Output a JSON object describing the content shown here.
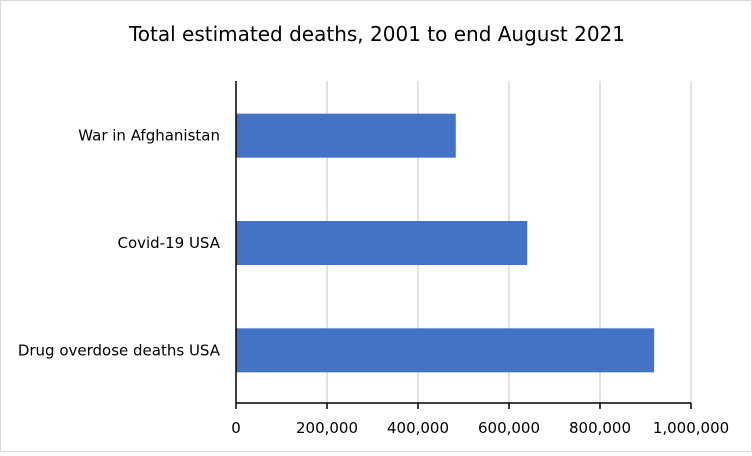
{
  "chart_data": {
    "type": "bar",
    "orientation": "horizontal",
    "title": "Total estimated deaths, 2001 to end August 2021",
    "categories": [
      "War in Afghanistan",
      "Covid-19 USA",
      "Drug overdose deaths USA"
    ],
    "values": [
      483000,
      640000,
      919000
    ],
    "xlabel": "",
    "ylabel": "",
    "xlim": [
      0,
      1000000
    ],
    "xticks": [
      0,
      200000,
      400000,
      600000,
      800000,
      1000000
    ],
    "xtick_labels": [
      "0",
      "200,000",
      "400,000",
      "600,000",
      "800,000",
      "1,000,000"
    ],
    "grid": true,
    "legend": "none",
    "bar_color": "#4472C4"
  }
}
